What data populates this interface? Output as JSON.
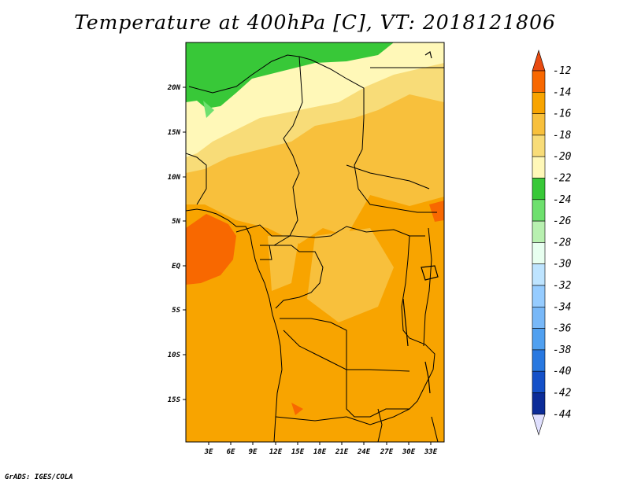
{
  "title": "Temperature at 400hPa [C], VT: 2018121806",
  "credit": "GrADS: IGES/COLA",
  "lat_labels": [
    "20N",
    "15N",
    "10N",
    "5N",
    "EQ",
    "5S",
    "10S",
    "15S"
  ],
  "lon_labels": [
    "3E",
    "6E",
    "9E",
    "12E",
    "15E",
    "18E",
    "21E",
    "24E",
    "27E",
    "30E",
    "33E"
  ],
  "colorbar": {
    "labels": [
      "-12",
      "-14",
      "-16",
      "-18",
      "-20",
      "-22",
      "-24",
      "-26",
      "-28",
      "-30",
      "-32",
      "-34",
      "-36",
      "-38",
      "-40",
      "-42",
      "-44"
    ],
    "colors": [
      "#e84a10",
      "#f86800",
      "#f8a400",
      "#f8c03c",
      "#f8dc78",
      "#fff8b8",
      "#38c838",
      "#6ee06e",
      "#b8f0b0",
      "#e8fff0",
      "#bee4ff",
      "#96ccff",
      "#78b8f8",
      "#50a0f0",
      "#2878e0",
      "#1450c8",
      "#0c2c98",
      "#0a0a70",
      "#e0e0ff"
    ],
    "top_arrow_color": "#e84a10",
    "bottom_arrow_color": "#e0e0ff"
  }
}
